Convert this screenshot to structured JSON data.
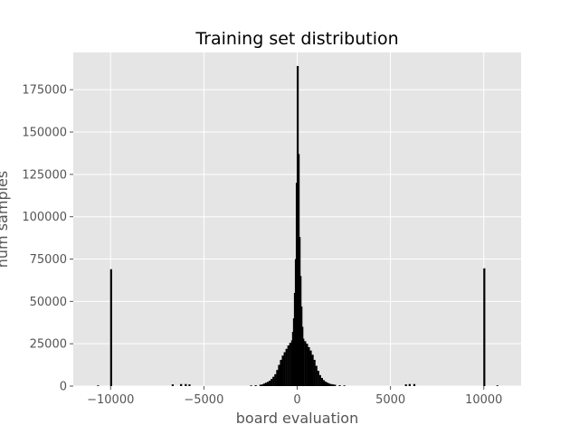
{
  "chart_data": {
    "type": "bar",
    "title": "Training set distribution",
    "xlabel": "board evaluation",
    "ylabel": "num samples",
    "xlim": [
      -12000,
      12000
    ],
    "ylim": [
      0,
      197000
    ],
    "xticks": [
      -10000,
      -5000,
      0,
      5000,
      10000
    ],
    "xtick_labels": [
      "−10000",
      "−5000",
      "0",
      "5000",
      "10000"
    ],
    "yticks": [
      0,
      25000,
      50000,
      75000,
      100000,
      125000,
      150000,
      175000
    ],
    "ytick_labels": [
      "0",
      "25000",
      "50000",
      "75000",
      "100000",
      "125000",
      "150000",
      "175000"
    ],
    "grid": true,
    "background": "#e5e5e5",
    "bar_color": "#000000",
    "bin_width": 50,
    "bins": [
      {
        "x": -10700,
        "y": 400
      },
      {
        "x": -10000,
        "y": 69000
      },
      {
        "x": -6700,
        "y": 1000
      },
      {
        "x": -6250,
        "y": 1200
      },
      {
        "x": -6000,
        "y": 1200
      },
      {
        "x": -5800,
        "y": 1000
      },
      {
        "x": -2500,
        "y": 400
      },
      {
        "x": -2250,
        "y": 500
      },
      {
        "x": -2000,
        "y": 800
      },
      {
        "x": -1900,
        "y": 1000
      },
      {
        "x": -1800,
        "y": 1500
      },
      {
        "x": -1700,
        "y": 2000
      },
      {
        "x": -1600,
        "y": 2500
      },
      {
        "x": -1500,
        "y": 3200
      },
      {
        "x": -1400,
        "y": 4200
      },
      {
        "x": -1300,
        "y": 5500
      },
      {
        "x": -1200,
        "y": 7000
      },
      {
        "x": -1100,
        "y": 9500
      },
      {
        "x": -1000,
        "y": 12500
      },
      {
        "x": -900,
        "y": 15500
      },
      {
        "x": -800,
        "y": 18000
      },
      {
        "x": -700,
        "y": 20000
      },
      {
        "x": -600,
        "y": 22000
      },
      {
        "x": -500,
        "y": 24000
      },
      {
        "x": -400,
        "y": 25500
      },
      {
        "x": -300,
        "y": 27000
      },
      {
        "x": -250,
        "y": 32000
      },
      {
        "x": -200,
        "y": 40000
      },
      {
        "x": -150,
        "y": 55000
      },
      {
        "x": -100,
        "y": 75000
      },
      {
        "x": -50,
        "y": 120000
      },
      {
        "x": 0,
        "y": 189000
      },
      {
        "x": 50,
        "y": 137000
      },
      {
        "x": 100,
        "y": 88000
      },
      {
        "x": 150,
        "y": 65000
      },
      {
        "x": 200,
        "y": 47000
      },
      {
        "x": 250,
        "y": 35000
      },
      {
        "x": 300,
        "y": 28000
      },
      {
        "x": 400,
        "y": 26500
      },
      {
        "x": 500,
        "y": 25000
      },
      {
        "x": 600,
        "y": 23000
      },
      {
        "x": 700,
        "y": 21000
      },
      {
        "x": 800,
        "y": 18500
      },
      {
        "x": 900,
        "y": 15500
      },
      {
        "x": 1000,
        "y": 12000
      },
      {
        "x": 1100,
        "y": 9000
      },
      {
        "x": 1200,
        "y": 6500
      },
      {
        "x": 1300,
        "y": 4800
      },
      {
        "x": 1400,
        "y": 3500
      },
      {
        "x": 1500,
        "y": 2600
      },
      {
        "x": 1600,
        "y": 2000
      },
      {
        "x": 1700,
        "y": 1500
      },
      {
        "x": 1800,
        "y": 1200
      },
      {
        "x": 1900,
        "y": 1000
      },
      {
        "x": 2000,
        "y": 800
      },
      {
        "x": 2250,
        "y": 500
      },
      {
        "x": 2500,
        "y": 400
      },
      {
        "x": 5800,
        "y": 1000
      },
      {
        "x": 6000,
        "y": 1200
      },
      {
        "x": 6250,
        "y": 1200
      },
      {
        "x": 10000,
        "y": 69500
      },
      {
        "x": 10700,
        "y": 400
      }
    ]
  }
}
